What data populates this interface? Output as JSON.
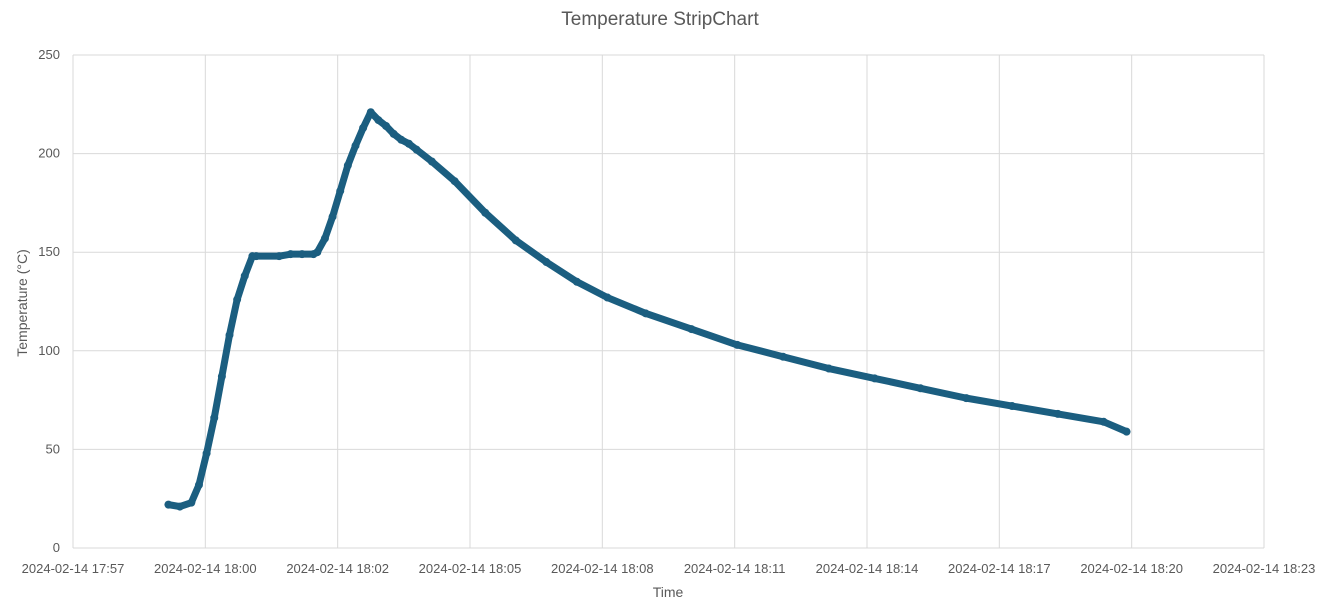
{
  "chart_data": {
    "type": "scatter",
    "title": "Temperature StripChart",
    "xlabel": "Time",
    "ylabel": "Temperature (°C)",
    "xlim": [
      "2024-02-14 17:57",
      "2024-02-14 18:23"
    ],
    "ylim": [
      0,
      250
    ],
    "x_ticks": [
      "2024-02-14 17:57",
      "2024-02-14 18:00",
      "2024-02-14 18:02",
      "2024-02-14 18:05",
      "2024-02-14 18:08",
      "2024-02-14 18:11",
      "2024-02-14 18:14",
      "2024-02-14 18:17",
      "2024-02-14 18:20",
      "2024-02-14 18:23"
    ],
    "y_ticks": [
      "0",
      "50",
      "100",
      "150",
      "200",
      "250"
    ],
    "grid": true,
    "legend": "none",
    "marker_color": "#1b5e80",
    "series": [
      {
        "x": [
          "2024-02-14 17:59:05",
          "2024-02-14 17:59:20",
          "2024-02-14 17:59:35",
          "2024-02-14 17:59:45",
          "2024-02-14 17:59:55",
          "2024-02-14 18:00:05",
          "2024-02-14 18:00:15",
          "2024-02-14 18:00:25",
          "2024-02-14 18:00:35",
          "2024-02-14 18:00:45",
          "2024-02-14 18:00:55",
          "2024-02-14 18:01:00",
          "2024-02-14 18:01:30",
          "2024-02-14 18:01:45",
          "2024-02-14 18:02:00",
          "2024-02-14 18:02:15",
          "2024-02-14 18:02:20",
          "2024-02-14 18:02:30",
          "2024-02-14 18:02:40",
          "2024-02-14 18:02:50",
          "2024-02-14 18:03:00",
          "2024-02-14 18:03:10",
          "2024-02-14 18:03:20",
          "2024-02-14 18:03:30",
          "2024-02-14 18:03:40",
          "2024-02-14 18:03:50",
          "2024-02-14 18:04:00",
          "2024-02-14 18:04:10",
          "2024-02-14 18:04:20",
          "2024-02-14 18:04:30",
          "2024-02-14 18:04:50",
          "2024-02-14 18:05:20",
          "2024-02-14 18:06:00",
          "2024-02-14 18:06:40",
          "2024-02-14 18:07:20",
          "2024-02-14 18:08:00",
          "2024-02-14 18:08:40",
          "2024-02-14 18:09:30",
          "2024-02-14 18:10:30",
          "2024-02-14 18:11:30",
          "2024-02-14 18:12:30",
          "2024-02-14 18:13:30",
          "2024-02-14 18:14:30",
          "2024-02-14 18:15:30",
          "2024-02-14 18:16:30",
          "2024-02-14 18:17:30",
          "2024-02-14 18:18:30",
          "2024-02-14 18:19:30",
          "2024-02-14 18:20:00"
        ],
        "y": [
          22,
          21,
          23,
          32,
          48,
          66,
          87,
          108,
          126,
          138,
          148,
          148,
          148,
          149,
          149,
          149,
          150,
          157,
          168,
          181,
          194,
          204,
          213,
          221,
          217,
          214,
          210,
          207,
          205,
          202,
          196,
          186,
          170,
          156,
          145,
          135,
          127,
          119,
          111,
          103,
          97,
          91,
          86,
          81,
          76,
          72,
          68,
          64,
          59
        ]
      }
    ]
  }
}
